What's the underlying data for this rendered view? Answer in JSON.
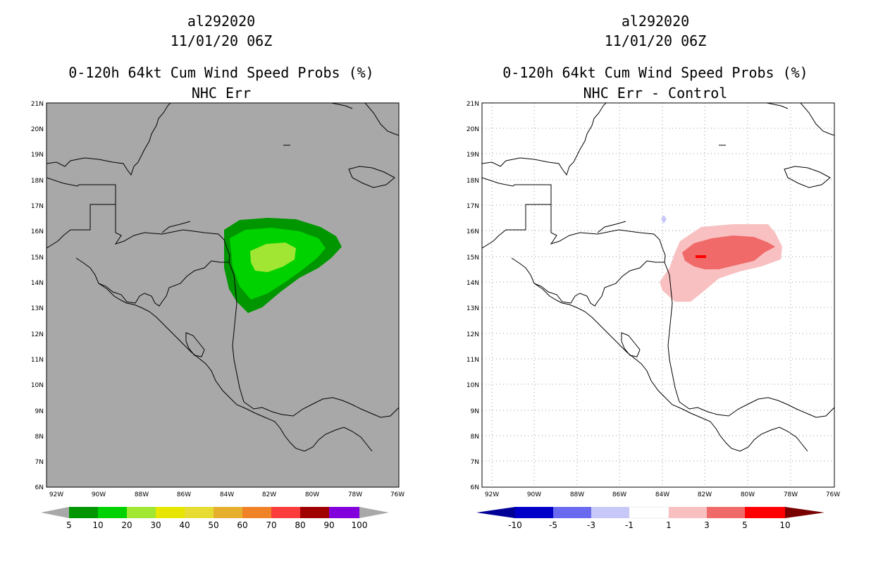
{
  "left_panel": {
    "storm_id": "al292020",
    "datetime": "11/01/20 06Z",
    "product": "0-120h 64kt Cum Wind Speed Probs (%)",
    "subtitle": "NHC Err",
    "colorbar": {
      "labels": [
        "5",
        "10",
        "20",
        "30",
        "40",
        "50",
        "60",
        "70",
        "80",
        "90",
        "100"
      ],
      "colors": [
        "#009600",
        "#00d200",
        "#a0e632",
        "#e6e600",
        "#e6dc32",
        "#e6af2d",
        "#f08228",
        "#fa3c3c",
        "#a00000",
        "#8200dc"
      ],
      "end_color": "#a8a8a8"
    },
    "map_background": "#a8a8a8"
  },
  "right_panel": {
    "storm_id": "al292020",
    "datetime": "11/01/20 06Z",
    "product": "0-120h 64kt Cum Wind Speed Probs (%)",
    "subtitle": "NHC Err - Control",
    "colorbar": {
      "labels": [
        "-10",
        "-5",
        "-3",
        "-1",
        "1",
        "3",
        "5",
        "10"
      ],
      "colors": [
        "#0000c8",
        "#6a6af0",
        "#c8c8f8",
        "#ffffff",
        "#f8c0c0",
        "#f06a6a",
        "#ff0000"
      ],
      "low_end_color": "#000096",
      "high_end_color": "#780000"
    },
    "map_background": "#ffffff"
  },
  "axes": {
    "lat_labels": [
      "21N",
      "20N",
      "19N",
      "18N",
      "17N",
      "16N",
      "15N",
      "14N",
      "13N",
      "12N",
      "11N",
      "10N",
      "9N",
      "8N",
      "7N",
      "6N"
    ],
    "lon_labels": [
      "92W",
      "90W",
      "88W",
      "86W",
      "84W",
      "82W",
      "80W",
      "78W",
      "76W"
    ]
  },
  "wind_prob_contours": [
    {
      "level": "5-10",
      "color": "#009600"
    },
    {
      "level": "10-20",
      "color": "#00d200"
    },
    {
      "level": "20-30",
      "color": "#a0e632"
    }
  ],
  "difference_contours": [
    {
      "level": "-3 to -1",
      "color": "#c8c8f8"
    },
    {
      "level": "1-3",
      "color": "#f8c0c0"
    },
    {
      "level": "3-5",
      "color": "#f06a6a"
    },
    {
      "level": "5-10",
      "color": "#ff0000"
    }
  ]
}
